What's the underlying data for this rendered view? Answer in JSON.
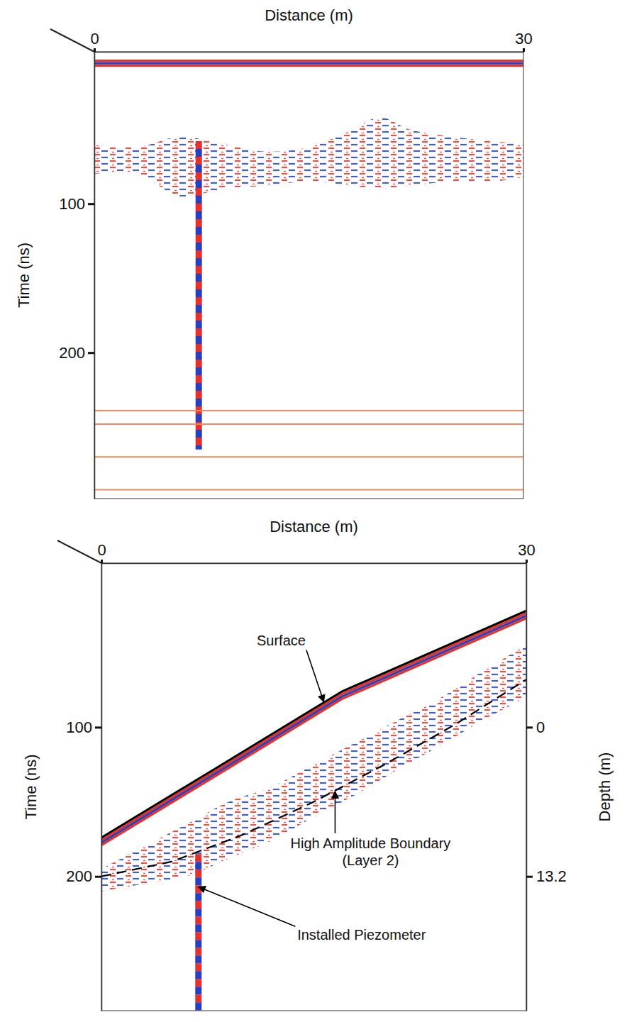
{
  "chart_data": [
    {
      "type": "radargram",
      "x_label": "Distance (m)",
      "y_label": "Time (ns)",
      "xlim": [
        0,
        30
      ],
      "xticks": [
        0,
        30
      ],
      "ylim": [
        -2,
        298
      ],
      "yticks": [
        100,
        200
      ],
      "series": [
        {
          "type": "band",
          "x": [
            0,
            3,
            6,
            9,
            12,
            15,
            18,
            20,
            22,
            25,
            28,
            30
          ],
          "upper": [
            60,
            62,
            55,
            60,
            65,
            62,
            50,
            42,
            50,
            55,
            58,
            60
          ],
          "lower": [
            80,
            80,
            95,
            90,
            88,
            85,
            88,
            90,
            88,
            85,
            85,
            82
          ],
          "colors": [
            "#e4312b",
            "#2740c0"
          ]
        },
        {
          "type": "line",
          "x": [
            0,
            30
          ],
          "values": [
            4,
            4
          ],
          "colors": [
            "#e4312b",
            "#2740c0",
            "#e4312b"
          ],
          "line_style": "solid"
        },
        {
          "type": "line",
          "x": [
            7.3,
            7.3
          ],
          "values": [
            58,
            265
          ],
          "colors": [
            "#e4312b",
            "#2740c0"
          ],
          "line_style": "alternating"
        },
        {
          "type": "line",
          "x": [
            0,
            30
          ],
          "values": [
            239,
            239
          ],
          "color": "#f08a5d",
          "line_style": "solid"
        },
        {
          "type": "line",
          "x": [
            0,
            30
          ],
          "values": [
            248,
            248
          ],
          "color": "#f08a5d",
          "line_style": "solid"
        },
        {
          "type": "line",
          "x": [
            0,
            30
          ],
          "values": [
            270,
            270
          ],
          "color": "#f08a5d",
          "line_style": "solid"
        },
        {
          "type": "line",
          "x": [
            0,
            30
          ],
          "values": [
            292,
            292
          ],
          "color": "#f08a5d",
          "line_style": "solid"
        }
      ]
    },
    {
      "type": "radargram",
      "x_label": "Distance (m)",
      "y_label": "Time (ns)",
      "y2_label": "Depth (m)",
      "xlim": [
        0,
        30
      ],
      "xticks": [
        0,
        30
      ],
      "ylim": [
        -10,
        290
      ],
      "yticks": [
        100,
        200
      ],
      "y2lim": [
        -14.52,
        25.08
      ],
      "y2ticks": [
        0,
        13.2
      ],
      "series": [
        {
          "type": "band",
          "x": [
            0,
            3,
            6,
            9,
            12,
            15,
            18,
            21,
            24,
            27,
            30
          ],
          "upper": [
            195,
            180,
            165,
            150,
            140,
            125,
            110,
            95,
            80,
            62,
            45
          ],
          "lower": [
            210,
            205,
            200,
            188,
            176,
            160,
            145,
            128,
            112,
            95,
            80
          ],
          "colors": [
            "#e4312b",
            "#2740c0"
          ]
        },
        {
          "type": "line",
          "x": [
            0,
            8,
            17,
            30
          ],
          "values": [
            174,
            128,
            76,
            22
          ],
          "colors": [
            "#000000",
            "#e4312b",
            "#2740c0",
            "#e4312b"
          ],
          "line_style": "solid"
        },
        {
          "type": "line",
          "x": [
            0,
            5,
            10,
            15,
            20,
            25,
            30
          ],
          "values": [
            200,
            190,
            172,
            150,
            125,
            98,
            68
          ],
          "color": "#000000",
          "line_style": "dashed"
        },
        {
          "type": "line",
          "x": [
            6.85,
            6.85
          ],
          "values": [
            185,
            290
          ],
          "colors": [
            "#e4312b",
            "#2740c0"
          ],
          "line_style": "alternating"
        }
      ],
      "annotations": [
        {
          "text": "Surface",
          "x": 15.7,
          "y": 83
        },
        {
          "text": [
            "High Amplitude Boundary",
            "(Layer 2)"
          ],
          "x": 16.5,
          "y": 143
        },
        {
          "text": "Installed Piezometer",
          "x": 6.85,
          "y": 207
        }
      ]
    }
  ]
}
